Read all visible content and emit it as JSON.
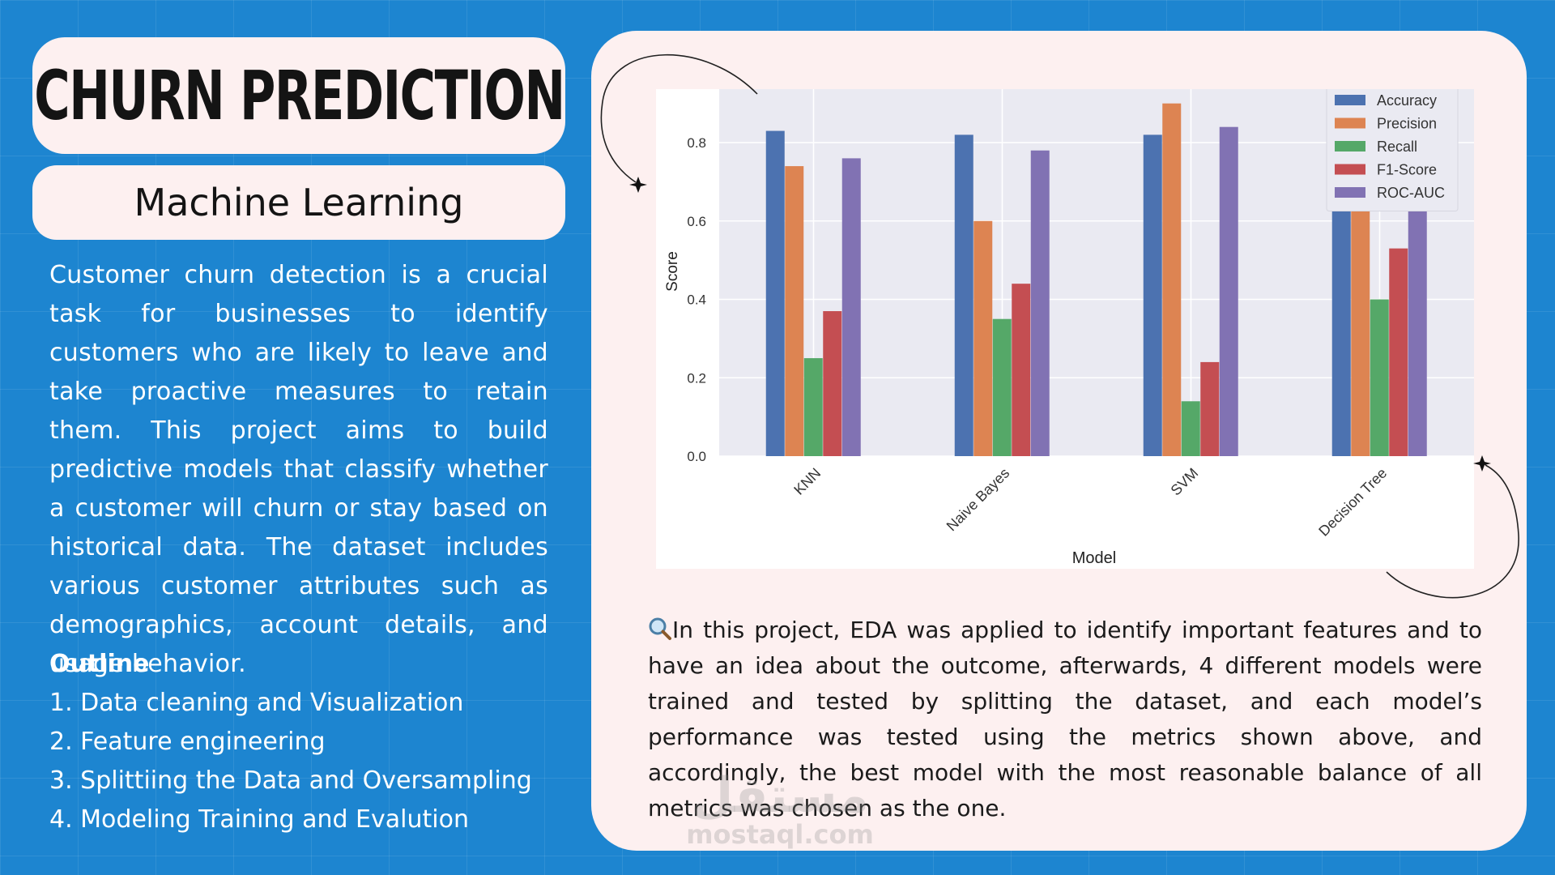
{
  "header": {
    "title": "CHURN PREDICTION",
    "subtitle": "Machine Learning"
  },
  "intro": {
    "description": "Customer churn detection is a crucial task for businesses to identify customers who are likely to leave and take proactive measures to retain them. This project aims to build predictive models that classify whether a customer will churn or stay based on historical data. The dataset includes various customer attributes such as demographics, account details, and usage behavior.",
    "outline_title": "Outline",
    "outline_items": [
      "1. Data cleaning and Visualization",
      "2. Feature engineering",
      "3. Splittiing the Data and Oversampling",
      "4. Modeling Training and Evalution"
    ]
  },
  "summary": {
    "icon": "magnifier-icon",
    "text": "In this project, EDA was applied to identify important features and to have an idea about the outcome, afterwards, 4 different models were trained and tested by splitting the dataset, and each model’s performance was tested using the metrics shown above, and accordingly, the best model with the most reasonable balance of all metrics was chosen as the one."
  },
  "watermark": {
    "arabic": "مستقل",
    "latin": "mostaql.com"
  },
  "colors": {
    "background": "#1d85d0",
    "card": "#fdf0f0",
    "plot_bg": "#eaeaf2"
  },
  "chart_data": {
    "type": "bar",
    "xlabel": "Model",
    "ylabel": "Score",
    "categories": [
      "KNN",
      "Naive Bayes",
      "SVM",
      "Decision Tree"
    ],
    "yticks": [
      "0.0",
      "0.2",
      "0.4",
      "0.6",
      "0.8"
    ],
    "ylim": [
      0,
      0.92
    ],
    "grid": true,
    "legend_position": "top-right",
    "series": [
      {
        "name": "Accuracy",
        "color": "#4c72b0",
        "values": [
          0.83,
          0.82,
          0.82,
          0.8
        ]
      },
      {
        "name": "Precision",
        "color": "#dd8452",
        "values": [
          0.74,
          0.6,
          0.9,
          0.73
        ]
      },
      {
        "name": "Recall",
        "color": "#55a868",
        "values": [
          0.25,
          0.35,
          0.14,
          0.4
        ]
      },
      {
        "name": "F1-Score",
        "color": "#c44e52",
        "values": [
          0.37,
          0.44,
          0.24,
          0.53
        ]
      },
      {
        "name": "ROC-AUC",
        "color": "#8172b3",
        "values": [
          0.76,
          0.78,
          0.84,
          0.72
        ]
      }
    ]
  }
}
